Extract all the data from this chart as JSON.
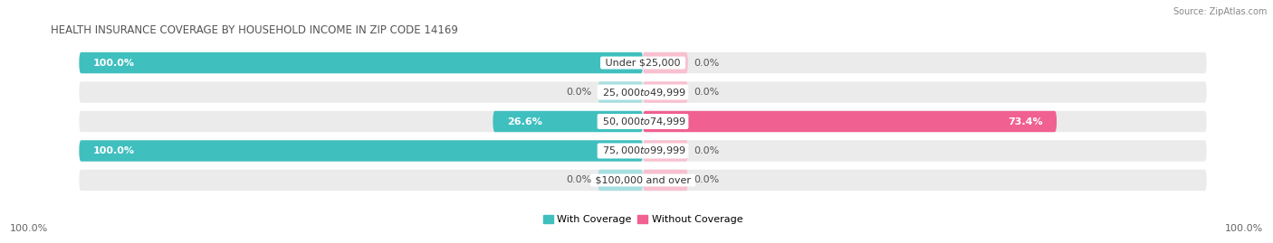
{
  "title": "HEALTH INSURANCE COVERAGE BY HOUSEHOLD INCOME IN ZIP CODE 14169",
  "source": "Source: ZipAtlas.com",
  "categories": [
    "Under $25,000",
    "$25,000 to $49,999",
    "$50,000 to $74,999",
    "$75,000 to $99,999",
    "$100,000 and over"
  ],
  "with_coverage": [
    100.0,
    0.0,
    26.6,
    100.0,
    0.0
  ],
  "without_coverage": [
    0.0,
    0.0,
    73.4,
    0.0,
    0.0
  ],
  "color_with": "#40bfbf",
  "color_without": "#f06090",
  "color_with_light": "#a8dfe0",
  "color_without_light": "#f8c0d0",
  "bg_row": "#ebebeb",
  "bg_fig": "#ffffff",
  "bar_height": 0.72,
  "label_fontsize": 8.0,
  "title_fontsize": 8.5,
  "source_fontsize": 7.0,
  "legend_fontsize": 8.0,
  "axis_label_left": "100.0%",
  "axis_label_right": "100.0%",
  "max_val": 100,
  "stub_val": 8
}
